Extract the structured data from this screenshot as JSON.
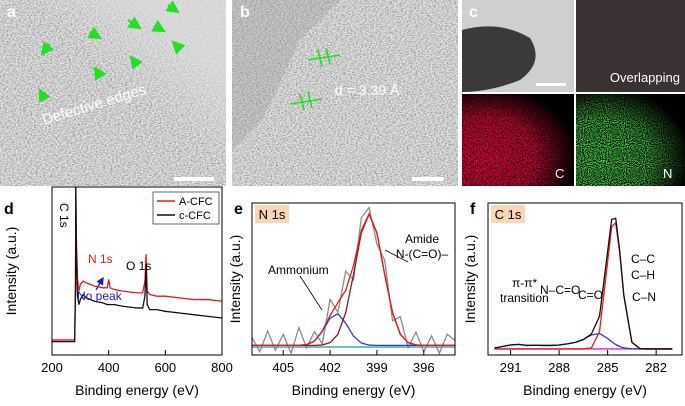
{
  "images": [
    {
      "label": "a",
      "caption": "Defective edges"
    },
    {
      "label": "b",
      "caption": "d = 3.39 Å"
    },
    {
      "label": "c",
      "captions": [
        "Overlapping",
        "C",
        "N"
      ]
    }
  ],
  "chart_data": [
    {
      "type": "line",
      "label": "d",
      "xlabel": "Binding energy (eV)",
      "ylabel": "Intensity (a.u.)",
      "xlim": [
        200,
        800
      ],
      "ylim": [
        0,
        100
      ],
      "xticks": [
        200,
        400,
        600,
        800
      ],
      "legend": "upper right",
      "annotations": [
        "C 1s",
        "N 1s",
        "O 1s",
        "No peak"
      ],
      "x": [
        200,
        240,
        280,
        283,
        284,
        286,
        290,
        295,
        300,
        310,
        320,
        350,
        380,
        395,
        400,
        405,
        420,
        450,
        500,
        520,
        528,
        532,
        536,
        545,
        570,
        600,
        650,
        700,
        750,
        800
      ],
      "series": [
        {
          "name": "A-CFC",
          "color": "#e8191c",
          "values": [
            9,
            9,
            9,
            45,
            100,
            70,
            45,
            38,
            42,
            44,
            43,
            41,
            40,
            40,
            45,
            40,
            39,
            38,
            37,
            37,
            44,
            60,
            38,
            36,
            35,
            35,
            34,
            33,
            33,
            32
          ]
        },
        {
          "name": "c-CFC",
          "color": "#111111",
          "values": [
            8,
            8,
            8,
            40,
            100,
            60,
            35,
            30,
            33,
            36,
            34,
            32,
            31,
            30,
            30,
            30,
            30,
            29,
            28,
            28,
            35,
            54,
            30,
            27,
            27,
            26,
            25,
            24,
            23,
            22
          ]
        }
      ]
    },
    {
      "type": "line",
      "label": "e",
      "box_label": "N 1s",
      "xlabel": "Binding energy (eV)",
      "ylabel": "Intensity (a.u.)",
      "xlim": [
        407,
        394
      ],
      "ylim": [
        0,
        95
      ],
      "xticks": [
        405,
        402,
        399,
        396
      ],
      "annotations": [
        "Ammonium",
        "Amide",
        "N-(C=O)–"
      ],
      "x": [
        407,
        406.5,
        406,
        405.5,
        405,
        404.5,
        404,
        403.5,
        403,
        402.5,
        402,
        401.5,
        401,
        400.5,
        400,
        399.5,
        399,
        398.5,
        398,
        397.5,
        397,
        396.5,
        396,
        395.5,
        395,
        394.5,
        394
      ],
      "series": [
        {
          "color": "#8c8c8c",
          "values": [
            11,
            2,
            15,
            3,
            13,
            1,
            17.1,
            4.5,
            14.7,
            7,
            34.7,
            26.7,
            52.3,
            47,
            85.8,
            92.2,
            69.3,
            59.2,
            21.4,
            23.9,
            4.7,
            14.3,
            2,
            12,
            1,
            13,
            9
          ]
        },
        {
          "color": "#1f9a9a",
          "values": [
            5,
            5,
            5,
            5,
            5,
            5,
            5,
            5,
            5,
            5,
            5,
            5,
            5,
            5,
            5,
            5,
            5,
            5,
            5,
            5,
            5,
            5,
            5,
            5,
            5,
            5,
            5
          ]
        },
        {
          "color": "#2a3fd1",
          "values": [
            6,
            6,
            6,
            6,
            6,
            6,
            6.1,
            6.5,
            8.7,
            14.7,
            23,
            25.8,
            19.9,
            11.8,
            7.5,
            6.2,
            6,
            6,
            6,
            6,
            6,
            6,
            6,
            6,
            6,
            6,
            6
          ]
        },
        {
          "color": "#8b1a1a",
          "values": [
            6,
            6,
            6,
            6,
            6,
            6,
            6,
            6,
            6,
            6.3,
            7.7,
            12.9,
            26.4,
            50.2,
            76.3,
            88,
            76.3,
            50.2,
            26.4,
            12.9,
            7.7,
            6.3,
            6,
            6,
            6,
            6,
            6
          ]
        },
        {
          "color": "#e8191c",
          "values": [
            6,
            6,
            6,
            6,
            6,
            6,
            6.1,
            6.5,
            8.7,
            15,
            24.7,
            32.7,
            40.3,
            56,
            77.8,
            88.2,
            76.3,
            50.2,
            26.4,
            12.9,
            7.7,
            6.3,
            6,
            6,
            6,
            6,
            6
          ]
        }
      ]
    },
    {
      "type": "line",
      "label": "f",
      "box_label": "C 1s",
      "xlabel": "Binding energy (eV)",
      "ylabel": "Intensity (a.u.)",
      "xlim": [
        292.4,
        280.4
      ],
      "ylim": [
        0,
        100
      ],
      "xticks": [
        291,
        288,
        285,
        282
      ],
      "annotations": [
        "π-π*",
        "transition",
        "N–C=O",
        "C=O",
        "C–C",
        "C–H",
        "C–N"
      ],
      "x": [
        292,
        291.5,
        291,
        290.5,
        290,
        289.5,
        289,
        288.5,
        288,
        287.5,
        287,
        286.5,
        286,
        285.5,
        285,
        284.75,
        284.5,
        284.25,
        284,
        283.5,
        283,
        282.5,
        282,
        281.5,
        281
      ],
      "series": [
        {
          "color": "#e020c8",
          "values": [
            4,
            4,
            4,
            4,
            4,
            4,
            4,
            4,
            4,
            4,
            4,
            4,
            4,
            4,
            4,
            4,
            4,
            4,
            4,
            4,
            4,
            4,
            4,
            4,
            4
          ]
        },
        {
          "color": "#2a3fd1",
          "values": [
            4.6,
            5.6,
            6.6,
            7,
            6.3,
            6.4,
            6.3,
            6.3,
            6.6,
            7.3,
            8.3,
            10.2,
            13.2,
            14.1,
            10.9,
            8.8,
            6.9,
            5.6,
            4.7,
            4.1,
            4,
            4,
            4,
            4,
            4
          ]
        },
        {
          "color": "#e8191c",
          "values": [
            4,
            4,
            4,
            4,
            4,
            4,
            4,
            4,
            4,
            4,
            4,
            4,
            4.7,
            15.5,
            61.3,
            84.4,
            87,
            66.8,
            38.9,
            8.3,
            4.2,
            4,
            4,
            4,
            4
          ]
        },
        {
          "color": "#111111",
          "values": [
            4.6,
            5.6,
            6.6,
            7,
            6.3,
            6.4,
            6.3,
            6.3,
            6.6,
            7.3,
            8.3,
            10.2,
            13.9,
            25.6,
            68.2,
            89.2,
            89.9,
            68.4,
            39.6,
            8.4,
            4.2,
            4,
            4,
            4,
            4
          ]
        }
      ]
    }
  ]
}
